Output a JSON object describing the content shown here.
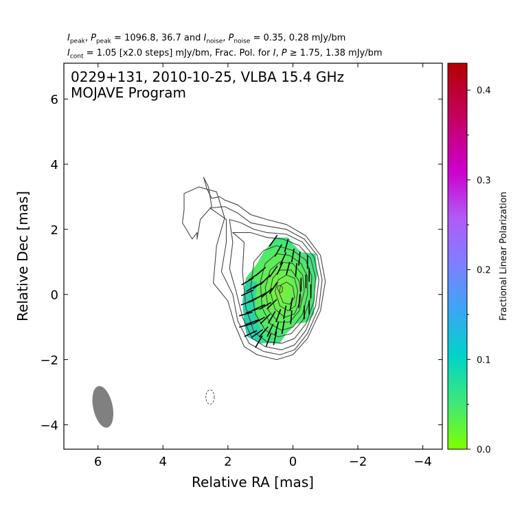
{
  "header": {
    "line1": {
      "pre_a": "I",
      "sub_a": "peak",
      "sep_a": ", ",
      "pre_b": "P",
      "sub_b": "peak",
      "val_peak": " = 1096.8, 36.7 and ",
      "pre_c": "I",
      "sub_c": "noise",
      "sep_c": ", ",
      "pre_d": "P",
      "sub_d": "noise",
      "val_noise": " = 0.35, 0.28 mJy/bm"
    },
    "line2": {
      "pre_a": "I",
      "sub_a": "cont",
      "val_a": " = 1.05 [x2.0 steps] mJy/bm, Frac. Pol. for ",
      "pre_b": "I",
      "sep_b": ", ",
      "pre_c": "P",
      "val_c": " ≥  1.75, 1.38 mJy/bm"
    }
  },
  "chart_data": {
    "type": "heatmap",
    "title": "0229+131, 2010-10-25, VLBA 15.4 GHz",
    "subtitle": "MOJAVE Program",
    "xlabel": "Relative RA [mas]",
    "ylabel": "Relative Dec [mas]",
    "xlim": [
      7.05,
      -4.6
    ],
    "ylim": [
      -4.75,
      7.1
    ],
    "x_ticks": [
      6,
      4,
      2,
      0,
      -2,
      -4
    ],
    "x_tick_labels": [
      "6",
      "4",
      "2",
      "0",
      "−2",
      "−4"
    ],
    "y_ticks": [
      -4,
      -2,
      0,
      2,
      4,
      6
    ],
    "y_tick_labels": [
      "−4",
      "−2",
      "0",
      "2",
      "4",
      "6"
    ],
    "grid": false,
    "colorbar": {
      "label": "Fractional Linear Polarization",
      "range": [
        0.0,
        0.43
      ],
      "ticks": [
        0.0,
        0.1,
        0.2,
        0.3,
        0.4
      ],
      "tick_labels": [
        "0.0",
        "0.1",
        "0.2",
        "0.3",
        "0.4"
      ],
      "colormap": [
        "#7fff00",
        "#00d4c8",
        "#7f7fff",
        "#cc00cc",
        "#b30000"
      ]
    },
    "contour_color": "#444444",
    "intensity_peak_mJy": 1096.8,
    "polarization_peak_mJy": 36.7,
    "intensity_contour_base_mJy": 1.05,
    "contour_step_factor": 2.0,
    "contours": [
      {
        "level": 1.05,
        "points": [
          [
            2.75,
            3.6
          ],
          [
            2.6,
            3.3
          ],
          [
            2.5,
            2.7
          ],
          [
            2.85,
            2.3
          ],
          [
            2.95,
            1.7
          ],
          [
            2.95,
            1.9
          ],
          [
            3.1,
            1.7
          ],
          [
            3.4,
            2.2
          ],
          [
            3.35,
            2.6
          ],
          [
            3.35,
            3.1
          ],
          [
            2.9,
            3.3
          ],
          [
            2.35,
            3.15
          ],
          [
            2.1,
            2.35
          ],
          [
            2.35,
            1.5
          ],
          [
            2.45,
            0.35
          ],
          [
            2.0,
            -0.2
          ],
          [
            1.8,
            -0.9
          ],
          [
            1.5,
            -1.6
          ],
          [
            1.1,
            -1.85
          ],
          [
            0.5,
            -2.0
          ],
          [
            0.0,
            -1.85
          ],
          [
            -0.45,
            -1.35
          ],
          [
            -0.85,
            -0.5
          ],
          [
            -1.0,
            0.4
          ],
          [
            -0.85,
            1.2
          ],
          [
            -0.4,
            1.8
          ],
          [
            0.2,
            2.15
          ],
          [
            0.8,
            2.3
          ],
          [
            1.3,
            2.45
          ],
          [
            1.7,
            2.75
          ],
          [
            2.1,
            2.9
          ],
          [
            2.25,
            3.0
          ],
          [
            2.5,
            2.95
          ],
          [
            2.65,
            3.25
          ],
          [
            2.75,
            3.6
          ]
        ]
      },
      {
        "level": 2.1,
        "points": [
          [
            2.55,
            2.65
          ],
          [
            2.05,
            2.3
          ],
          [
            2.05,
            1.6
          ],
          [
            2.2,
            0.7
          ],
          [
            1.85,
            0.0
          ],
          [
            1.7,
            -0.8
          ],
          [
            1.35,
            -1.5
          ],
          [
            0.9,
            -1.75
          ],
          [
            0.4,
            -1.85
          ],
          [
            -0.05,
            -1.7
          ],
          [
            -0.45,
            -1.2
          ],
          [
            -0.8,
            -0.4
          ],
          [
            -0.9,
            0.45
          ],
          [
            -0.75,
            1.2
          ],
          [
            -0.35,
            1.7
          ],
          [
            0.2,
            2.0
          ],
          [
            0.8,
            2.1
          ],
          [
            1.3,
            2.2
          ],
          [
            1.7,
            2.5
          ],
          [
            2.1,
            2.7
          ],
          [
            2.55,
            2.65
          ]
        ]
      },
      {
        "level": 4.2,
        "points": [
          [
            1.95,
            2.3
          ],
          [
            1.85,
            1.6
          ],
          [
            1.95,
            0.8
          ],
          [
            1.75,
            0.1
          ],
          [
            1.55,
            -0.7
          ],
          [
            1.25,
            -1.35
          ],
          [
            0.85,
            -1.6
          ],
          [
            0.35,
            -1.7
          ],
          [
            -0.05,
            -1.55
          ],
          [
            -0.4,
            -1.1
          ],
          [
            -0.7,
            -0.35
          ],
          [
            -0.8,
            0.45
          ],
          [
            -0.65,
            1.15
          ],
          [
            -0.3,
            1.6
          ],
          [
            0.2,
            1.85
          ],
          [
            0.8,
            1.9
          ],
          [
            1.2,
            2.0
          ],
          [
            1.6,
            2.2
          ],
          [
            1.95,
            2.3
          ]
        ]
      },
      {
        "level": 8.4,
        "points": [
          [
            1.85,
            1.9
          ],
          [
            1.5,
            1.6
          ],
          [
            1.55,
            0.7
          ],
          [
            1.45,
            -0.4
          ],
          [
            1.2,
            -1.15
          ],
          [
            0.8,
            -1.45
          ],
          [
            0.35,
            -1.5
          ],
          [
            -0.05,
            -1.35
          ],
          [
            -0.4,
            -0.9
          ],
          [
            -0.65,
            -0.2
          ],
          [
            -0.7,
            0.5
          ],
          [
            -0.55,
            1.1
          ],
          [
            -0.2,
            1.5
          ],
          [
            0.3,
            1.7
          ],
          [
            0.8,
            1.75
          ],
          [
            1.3,
            1.9
          ],
          [
            1.85,
            1.9
          ]
        ]
      },
      {
        "level": 16.8,
        "points": [
          [
            1.2,
            1.0
          ],
          [
            1.3,
            0.2
          ],
          [
            1.15,
            -0.6
          ],
          [
            0.85,
            -1.1
          ],
          [
            0.45,
            -1.3
          ],
          [
            0.05,
            -1.2
          ],
          [
            -0.3,
            -0.8
          ],
          [
            -0.55,
            -0.1
          ],
          [
            -0.58,
            0.55
          ],
          [
            -0.4,
            1.05
          ],
          [
            0.0,
            1.35
          ],
          [
            0.5,
            1.5
          ],
          [
            0.9,
            1.35
          ],
          [
            1.2,
            1.0
          ]
        ]
      },
      {
        "level": 33.6,
        "points": [
          [
            1.0,
            0.4
          ],
          [
            0.95,
            -0.4
          ],
          [
            0.7,
            -0.9
          ],
          [
            0.35,
            -1.1
          ],
          [
            0.0,
            -1.0
          ],
          [
            -0.3,
            -0.6
          ],
          [
            -0.45,
            0.0
          ],
          [
            -0.45,
            0.55
          ],
          [
            -0.25,
            0.95
          ],
          [
            0.1,
            1.2
          ],
          [
            0.5,
            1.25
          ],
          [
            0.85,
            0.95
          ],
          [
            1.0,
            0.4
          ]
        ]
      },
      {
        "level": 67.2,
        "points": [
          [
            0.85,
            0.2
          ],
          [
            0.75,
            -0.5
          ],
          [
            0.45,
            -0.85
          ],
          [
            0.1,
            -0.85
          ],
          [
            -0.2,
            -0.5
          ],
          [
            -0.35,
            0.1
          ],
          [
            -0.3,
            0.6
          ],
          [
            0.0,
            0.95
          ],
          [
            0.4,
            1.0
          ],
          [
            0.7,
            0.75
          ],
          [
            0.85,
            0.2
          ]
        ]
      },
      {
        "level": 134.4,
        "points": [
          [
            0.7,
            0.1
          ],
          [
            0.55,
            -0.45
          ],
          [
            0.25,
            -0.7
          ],
          [
            -0.05,
            -0.6
          ],
          [
            -0.25,
            -0.15
          ],
          [
            -0.2,
            0.4
          ],
          [
            0.05,
            0.75
          ],
          [
            0.4,
            0.75
          ],
          [
            0.62,
            0.5
          ],
          [
            0.7,
            0.1
          ]
        ]
      },
      {
        "level": 268.8,
        "points": [
          [
            0.55,
            0.1
          ],
          [
            0.4,
            -0.35
          ],
          [
            0.15,
            -0.5
          ],
          [
            -0.08,
            -0.35
          ],
          [
            -0.15,
            0.1
          ],
          [
            -0.05,
            0.5
          ],
          [
            0.2,
            0.6
          ],
          [
            0.45,
            0.45
          ],
          [
            0.55,
            0.1
          ]
        ]
      },
      {
        "level": 537.6,
        "points": [
          [
            0.42,
            0.05
          ],
          [
            0.3,
            -0.25
          ],
          [
            0.1,
            -0.3
          ],
          [
            -0.05,
            -0.1
          ],
          [
            0.0,
            0.25
          ],
          [
            0.2,
            0.38
          ],
          [
            0.38,
            0.28
          ],
          [
            0.42,
            0.05
          ]
        ]
      },
      {
        "level": 1075.2,
        "points": [
          [
            0.48,
            0.22
          ],
          [
            0.44,
            0.1
          ],
          [
            0.38,
            0.05
          ],
          [
            0.32,
            0.1
          ],
          [
            0.32,
            0.22
          ],
          [
            0.38,
            0.28
          ],
          [
            0.45,
            0.27
          ],
          [
            0.48,
            0.22
          ]
        ]
      }
    ],
    "negative_contour": {
      "level": -1.05,
      "center": [
        2.55,
        -3.15
      ],
      "rx": 0.13,
      "ry": 0.22
    },
    "polarization_region": {
      "outline": [
        [
          0.55,
          1.75
        ],
        [
          0.15,
          1.75
        ],
        [
          -0.05,
          1.5
        ],
        [
          -0.25,
          1.3
        ],
        [
          -0.7,
          1.25
        ],
        [
          -0.75,
          0.6
        ],
        [
          -0.65,
          0.1
        ],
        [
          -0.65,
          -0.6
        ],
        [
          -0.45,
          -0.85
        ],
        [
          -0.1,
          -0.9
        ],
        [
          0.2,
          -1.2
        ],
        [
          0.4,
          -1.5
        ],
        [
          1.0,
          -1.5
        ],
        [
          1.4,
          -1.3
        ],
        [
          1.5,
          -0.9
        ],
        [
          1.55,
          -0.2
        ],
        [
          1.45,
          0.5
        ],
        [
          1.1,
          0.95
        ],
        [
          0.9,
          1.3
        ],
        [
          0.75,
          1.5
        ],
        [
          0.55,
          1.75
        ]
      ],
      "fractional_pol_samples": [
        {
          "x": 0.5,
          "y": 0.0,
          "fpol": 0.01
        },
        {
          "x": 0.9,
          "y": 0.4,
          "fpol": 0.03
        },
        {
          "x": 1.3,
          "y": -0.9,
          "fpol": 0.09
        },
        {
          "x": 1.4,
          "y": 0.0,
          "fpol": 0.07
        },
        {
          "x": -0.5,
          "y": 0.2,
          "fpol": 0.05
        },
        {
          "x": 0.4,
          "y": 1.5,
          "fpol": 0.03
        }
      ]
    },
    "evpa_sticks": [
      {
        "x": 1.4,
        "y": 0.4,
        "angle_deg": 60
      },
      {
        "x": 1.2,
        "y": 0.55,
        "angle_deg": 55
      },
      {
        "x": 1.0,
        "y": 0.7,
        "angle_deg": 50
      },
      {
        "x": 0.6,
        "y": 1.65,
        "angle_deg": 35
      },
      {
        "x": 0.45,
        "y": 1.35,
        "angle_deg": 30
      },
      {
        "x": 0.3,
        "y": 1.1,
        "angle_deg": 25
      },
      {
        "x": 0.2,
        "y": 1.5,
        "angle_deg": 15
      },
      {
        "x": 0.0,
        "y": 1.2,
        "angle_deg": 10
      },
      {
        "x": -0.2,
        "y": 1.1,
        "angle_deg": 5
      },
      {
        "x": -0.45,
        "y": 1.0,
        "angle_deg": 0
      },
      {
        "x": -0.5,
        "y": 0.6,
        "angle_deg": 0
      },
      {
        "x": -0.55,
        "y": 0.1,
        "angle_deg": 0
      },
      {
        "x": -0.5,
        "y": -0.4,
        "angle_deg": 0
      },
      {
        "x": -0.4,
        "y": 0.4,
        "angle_deg": 0
      },
      {
        "x": 1.4,
        "y": 0.05,
        "angle_deg": 65
      },
      {
        "x": 1.25,
        "y": 0.2,
        "angle_deg": 60
      },
      {
        "x": 1.05,
        "y": 0.3,
        "angle_deg": 55
      },
      {
        "x": 0.85,
        "y": 0.45,
        "angle_deg": 45
      },
      {
        "x": 0.6,
        "y": 0.7,
        "angle_deg": 35
      },
      {
        "x": 0.4,
        "y": 0.8,
        "angle_deg": 25
      },
      {
        "x": 0.15,
        "y": 0.8,
        "angle_deg": 15
      },
      {
        "x": -0.1,
        "y": 0.75,
        "angle_deg": 5
      },
      {
        "x": 1.4,
        "y": -0.25,
        "angle_deg": 70
      },
      {
        "x": 1.2,
        "y": -0.15,
        "angle_deg": 65
      },
      {
        "x": 1.0,
        "y": -0.05,
        "angle_deg": 60
      },
      {
        "x": 0.8,
        "y": 0.05,
        "angle_deg": 50
      },
      {
        "x": 0.6,
        "y": 0.2,
        "angle_deg": 35
      },
      {
        "x": -0.25,
        "y": 0.3,
        "angle_deg": 0
      },
      {
        "x": 1.45,
        "y": -0.6,
        "angle_deg": 75
      },
      {
        "x": 1.25,
        "y": -0.5,
        "angle_deg": 70
      },
      {
        "x": 1.05,
        "y": -0.4,
        "angle_deg": 65
      },
      {
        "x": 0.85,
        "y": -0.35,
        "angle_deg": 60
      },
      {
        "x": 0.65,
        "y": -0.3,
        "angle_deg": 45
      },
      {
        "x": 0.05,
        "y": -0.3,
        "angle_deg": 10
      },
      {
        "x": -0.2,
        "y": -0.2,
        "angle_deg": 5
      },
      {
        "x": -0.35,
        "y": -0.55,
        "angle_deg": 0
      },
      {
        "x": 1.45,
        "y": -0.95,
        "angle_deg": 75
      },
      {
        "x": 1.25,
        "y": -0.85,
        "angle_deg": 70
      },
      {
        "x": 1.05,
        "y": -0.8,
        "angle_deg": 60
      },
      {
        "x": 0.85,
        "y": -0.75,
        "angle_deg": 45
      },
      {
        "x": 0.65,
        "y": -0.7,
        "angle_deg": 30
      },
      {
        "x": 0.45,
        "y": -0.65,
        "angle_deg": 20
      },
      {
        "x": 0.25,
        "y": -0.55,
        "angle_deg": 10
      },
      {
        "x": 0.05,
        "y": -0.7,
        "angle_deg": 5
      },
      {
        "x": 1.3,
        "y": -1.2,
        "angle_deg": 65
      },
      {
        "x": 1.1,
        "y": -1.2,
        "angle_deg": 55
      },
      {
        "x": 0.9,
        "y": -1.15,
        "angle_deg": 40
      },
      {
        "x": 0.7,
        "y": -1.1,
        "angle_deg": 25
      },
      {
        "x": 0.5,
        "y": -1.05,
        "angle_deg": 15
      },
      {
        "x": 0.3,
        "y": -1.0,
        "angle_deg": 10
      },
      {
        "x": 1.05,
        "y": -1.45,
        "angle_deg": 30
      },
      {
        "x": 0.75,
        "y": -1.4,
        "angle_deg": 20
      },
      {
        "x": 0.55,
        "y": -1.35,
        "angle_deg": 12
      }
    ],
    "beam": {
      "center_ra": 5.85,
      "center_dec": -3.45,
      "major_mas": 1.3,
      "minor_mas": 0.6,
      "pa_deg": -12,
      "color": "#808080"
    }
  }
}
